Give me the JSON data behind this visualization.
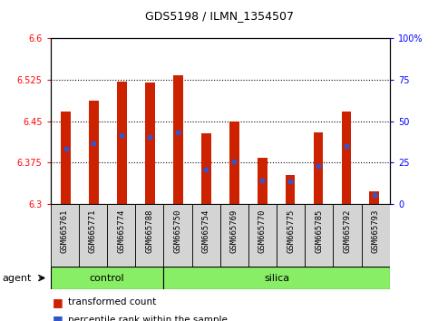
{
  "title": "GDS5198 / ILMN_1354507",
  "samples": [
    "GSM665761",
    "GSM665771",
    "GSM665774",
    "GSM665788",
    "GSM665750",
    "GSM665754",
    "GSM665769",
    "GSM665770",
    "GSM665775",
    "GSM665785",
    "GSM665792",
    "GSM665793"
  ],
  "groups": [
    "control",
    "control",
    "control",
    "control",
    "silica",
    "silica",
    "silica",
    "silica",
    "silica",
    "silica",
    "silica",
    "silica"
  ],
  "bar_tops": [
    6.468,
    6.488,
    6.522,
    6.52,
    6.533,
    6.428,
    6.45,
    6.383,
    6.353,
    6.43,
    6.468,
    6.322
  ],
  "blue_positions": [
    6.4,
    6.41,
    6.424,
    6.421,
    6.43,
    6.362,
    6.377,
    6.342,
    6.34,
    6.368,
    6.405,
    6.316
  ],
  "bar_base": 6.3,
  "ylim_left": [
    6.3,
    6.6
  ],
  "ylim_right": [
    0,
    100
  ],
  "yticks_left": [
    6.3,
    6.375,
    6.45,
    6.525,
    6.6
  ],
  "yticks_right": [
    0,
    25,
    50,
    75,
    100
  ],
  "grid_values": [
    6.375,
    6.45,
    6.525
  ],
  "bar_color": "#cc2200",
  "blue_color": "#3355cc",
  "control_color": "#88ee66",
  "silica_color": "#88ee66",
  "group_border_color": "#000000",
  "agent_label": "agent",
  "legend_items": [
    "transformed count",
    "percentile rank within the sample"
  ],
  "bar_width": 0.35,
  "title_fontsize": 9,
  "label_fontsize": 7,
  "group_fontsize": 8
}
